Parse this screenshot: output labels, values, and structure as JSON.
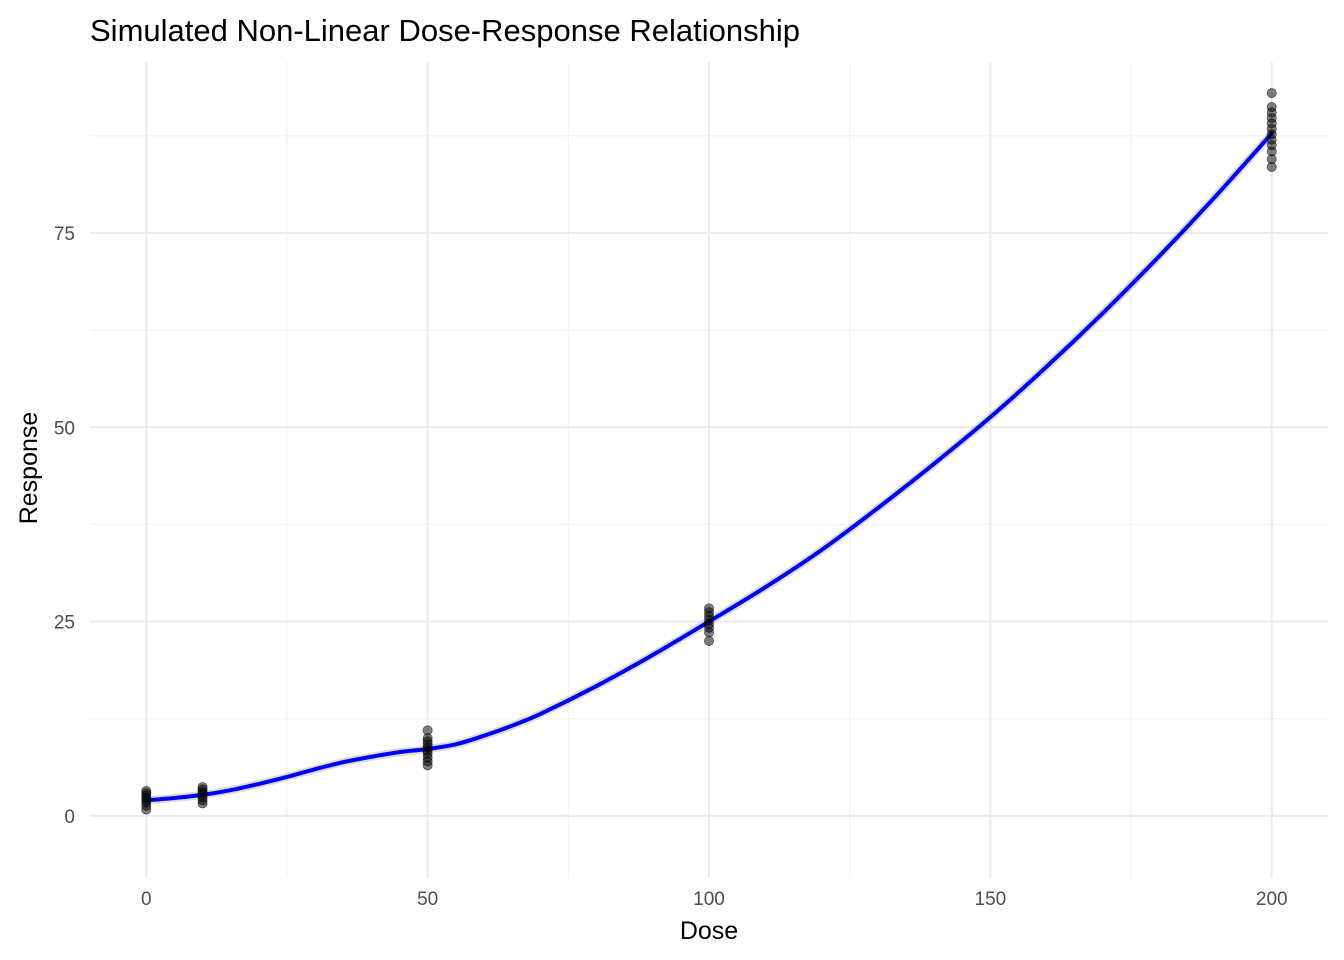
{
  "chart_data": {
    "type": "scatter",
    "title": "Simulated Non-Linear Dose-Response Relationship",
    "xlabel": "Dose",
    "ylabel": "Response",
    "xlim": [
      -10,
      210
    ],
    "ylim": [
      -8,
      97
    ],
    "x_ticks": [
      0,
      50,
      100,
      150,
      200
    ],
    "y_ticks": [
      0,
      25,
      50,
      75
    ],
    "x_minor_ticks": [
      25,
      75,
      125,
      175
    ],
    "y_minor_ticks": [
      12.5,
      37.5,
      62.5,
      87.5
    ],
    "grid": true,
    "legend": "none",
    "colors": {
      "points": "#000000",
      "fit_line": "#0000ff",
      "fit_band": "#999999"
    },
    "points": [
      {
        "dose": 0,
        "responses": [
          0.8,
          1.3,
          1.7,
          2.0,
          2.3,
          2.6,
          2.9,
          3.2
        ]
      },
      {
        "dose": 10,
        "responses": [
          1.6,
          2.0,
          2.4,
          2.8,
          3.1,
          3.4,
          3.7
        ]
      },
      {
        "dose": 50,
        "responses": [
          6.5,
          7.0,
          7.5,
          8.0,
          8.4,
          8.8,
          9.2,
          9.6,
          10.0,
          11.0
        ]
      },
      {
        "dose": 100,
        "responses": [
          22.5,
          23.6,
          24.2,
          24.7,
          25.2,
          25.7,
          26.2,
          26.7
        ]
      },
      {
        "dose": 200,
        "responses": [
          83.5,
          84.5,
          85.5,
          86.3,
          87.0,
          87.7,
          88.4,
          89.1,
          89.8,
          90.5,
          91.2,
          93.0
        ]
      }
    ],
    "fit_line": {
      "x": [
        0,
        5,
        10,
        15,
        20,
        25,
        30,
        35,
        40,
        45,
        50,
        55,
        60,
        65,
        70,
        80,
        90,
        100,
        110,
        120,
        130,
        140,
        150,
        160,
        170,
        180,
        190,
        200
      ],
      "y": [
        2.0,
        2.3,
        2.7,
        3.3,
        4.1,
        5.0,
        6.0,
        6.9,
        7.6,
        8.2,
        8.6,
        9.2,
        10.3,
        11.6,
        13.1,
        16.7,
        20.7,
        25.0,
        29.4,
        34.2,
        39.6,
        45.3,
        51.3,
        57.8,
        64.7,
        72.0,
        79.7,
        87.8
      ]
    }
  }
}
